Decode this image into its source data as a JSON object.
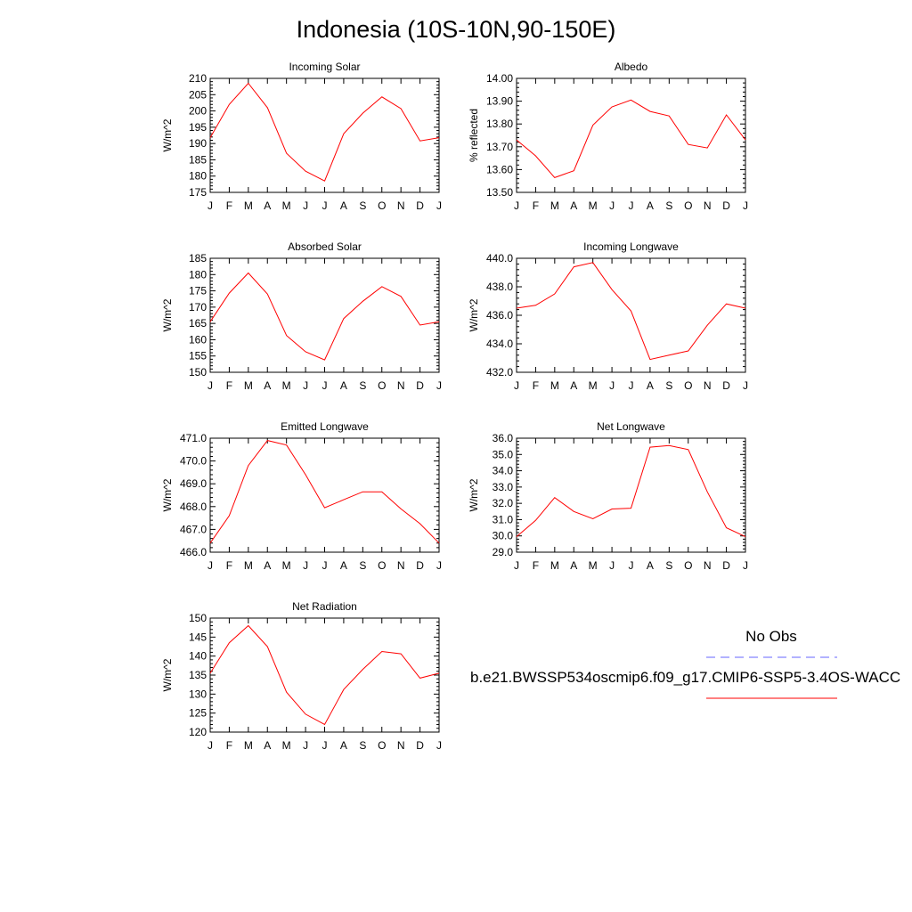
{
  "page_title": "Indonesia (10S-10N,90-150E)",
  "legend": {
    "obs_label": "No Obs",
    "obs_color": "#6666ff",
    "case_label": "b.e21.BWSSP534oscmip6.f09_g17.CMIP6-SSP5-3.4OS-WACC",
    "case_color": "#ff0000"
  },
  "month_labels": [
    "J",
    "F",
    "M",
    "A",
    "M",
    "J",
    "J",
    "A",
    "S",
    "O",
    "N",
    "D",
    "J"
  ],
  "chart_data": [
    {
      "type": "line",
      "title": "Incoming Solar",
      "ylabel": "W/m^2",
      "ylim": [
        175,
        210
      ],
      "yticks": [
        175,
        180,
        185,
        190,
        195,
        200,
        205,
        210
      ],
      "ytick_labels": [
        "175",
        "180",
        "185",
        "190",
        "195",
        "200",
        "205",
        "210"
      ],
      "series": [
        {
          "values": [
            191.8,
            202.0,
            208.5,
            201.0,
            187.0,
            181.5,
            178.5,
            193.0,
            199.3,
            204.3,
            200.7,
            190.8,
            191.8
          ]
        }
      ]
    },
    {
      "type": "line",
      "title": "Albedo",
      "ylabel": "% reflected",
      "ylim": [
        13.5,
        14.0
      ],
      "yticks": [
        13.5,
        13.6,
        13.7,
        13.8,
        13.9,
        14.0
      ],
      "ytick_labels": [
        "13.50",
        "13.60",
        "13.70",
        "13.80",
        "13.90",
        "14.00"
      ],
      "series": [
        {
          "values": [
            13.73,
            13.66,
            13.565,
            13.595,
            13.795,
            13.875,
            13.905,
            13.855,
            13.835,
            13.71,
            13.695,
            13.84,
            13.73
          ]
        }
      ]
    },
    {
      "type": "line",
      "title": "Absorbed Solar",
      "ylabel": "W/m^2",
      "ylim": [
        150,
        185
      ],
      "yticks": [
        150,
        155,
        160,
        165,
        170,
        175,
        180,
        185
      ],
      "ytick_labels": [
        "150",
        "155",
        "160",
        "165",
        "170",
        "175",
        "180",
        "185"
      ],
      "series": [
        {
          "values": [
            165.5,
            174.3,
            180.5,
            174.0,
            161.3,
            156.3,
            153.8,
            166.5,
            171.8,
            176.3,
            173.3,
            164.5,
            165.5
          ]
        }
      ]
    },
    {
      "type": "line",
      "title": "Incoming Longwave",
      "ylabel": "W/m^2",
      "ylim": [
        432.0,
        440.0
      ],
      "yticks": [
        432,
        434,
        436,
        438,
        440
      ],
      "ytick_labels": [
        "432.0",
        "434.0",
        "436.0",
        "438.0",
        "440.0"
      ],
      "series": [
        {
          "values": [
            436.5,
            436.7,
            437.5,
            439.4,
            439.7,
            437.8,
            436.3,
            432.9,
            433.2,
            433.5,
            435.3,
            436.8,
            436.5
          ]
        }
      ]
    },
    {
      "type": "line",
      "title": "Emitted Longwave",
      "ylabel": "W/m^2",
      "ylim": [
        466.0,
        471.0
      ],
      "yticks": [
        466,
        467,
        468,
        469,
        470,
        471
      ],
      "ytick_labels": [
        "466.0",
        "467.0",
        "468.0",
        "469.0",
        "470.0",
        "471.0"
      ],
      "series": [
        {
          "values": [
            466.4,
            467.6,
            469.8,
            470.9,
            470.7,
            469.4,
            467.95,
            468.3,
            468.65,
            468.65,
            467.9,
            467.25,
            466.4
          ]
        }
      ]
    },
    {
      "type": "line",
      "title": "Net Longwave",
      "ylabel": "W/m^2",
      "ylim": [
        29.0,
        36.0
      ],
      "yticks": [
        29,
        30,
        31,
        32,
        33,
        34,
        35,
        36
      ],
      "ytick_labels": [
        "29.0",
        "30.0",
        "31.0",
        "32.0",
        "33.0",
        "34.0",
        "35.0",
        "36.0"
      ],
      "series": [
        {
          "values": [
            29.95,
            30.95,
            32.35,
            31.5,
            31.05,
            31.65,
            31.7,
            35.45,
            35.55,
            35.3,
            32.7,
            30.5,
            29.95
          ]
        }
      ]
    },
    {
      "type": "line",
      "title": "Net Radiation",
      "ylabel": "W/m^2",
      "ylim": [
        120,
        150
      ],
      "yticks": [
        120,
        125,
        130,
        135,
        140,
        145,
        150
      ],
      "ytick_labels": [
        "120",
        "125",
        "130",
        "135",
        "140",
        "145",
        "150"
      ],
      "series": [
        {
          "values": [
            135.5,
            143.5,
            148.0,
            142.5,
            130.5,
            124.7,
            122.0,
            131.2,
            136.5,
            141.2,
            140.6,
            134.2,
            135.5
          ]
        }
      ]
    }
  ]
}
